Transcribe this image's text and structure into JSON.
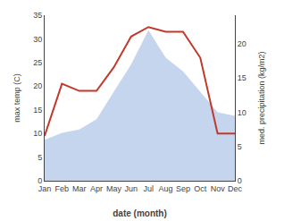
{
  "chart_data": {
    "type": "line",
    "categories": [
      "Jan",
      "Feb",
      "Mar",
      "Apr",
      "May",
      "Jun",
      "Jul",
      "Aug",
      "Sep",
      "Oct",
      "Nov",
      "Dec"
    ],
    "xlabel": "date (month)",
    "ylabel": "max temp (C)",
    "y2label": "med. precipitation (kg/m2)",
    "series": [
      {
        "type": "area",
        "axis": "y2",
        "color": "#c5d5ee",
        "values": [
          6.0,
          7.0,
          7.5,
          9.0,
          13.0,
          17.0,
          22.0,
          18.0,
          16.0,
          13.0,
          10.0,
          9.5
        ]
      },
      {
        "type": "line",
        "color": "#c0392b",
        "values": [
          9.5,
          20.5,
          19.0,
          19.0,
          24.0,
          30.5,
          32.5,
          31.5,
          31.5,
          26.0,
          10.0,
          10.0
        ]
      }
    ],
    "ylim": [
      0,
      35
    ],
    "yticks": [
      0,
      5,
      10,
      15,
      20,
      25,
      30,
      35
    ],
    "y2lim": [
      0,
      24.2
    ],
    "y2ticks": [
      0,
      5,
      10,
      15,
      20
    ],
    "grid": false
  }
}
